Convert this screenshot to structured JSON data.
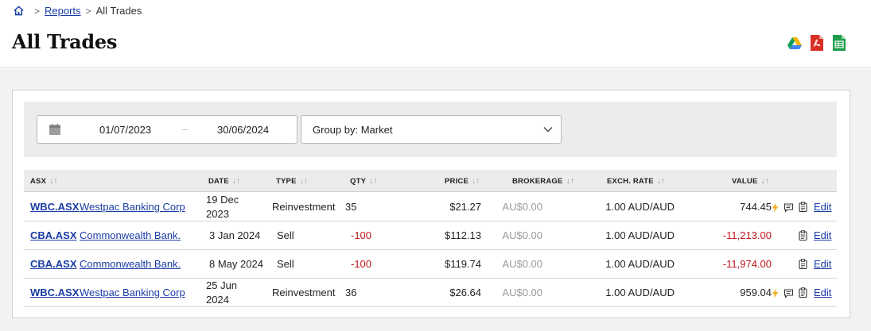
{
  "breadcrumb": {
    "home_icon": "home-icon",
    "reports_label": "Reports",
    "current_label": "All Trades"
  },
  "page": {
    "title": "All Trades"
  },
  "export": [
    {
      "name": "google-drive-icon"
    },
    {
      "name": "pdf-icon"
    },
    {
      "name": "spreadsheet-icon"
    }
  ],
  "filters": {
    "date_from": "01/07/2023",
    "date_separator": "–",
    "date_to": "30/06/2024",
    "group_by": "Group by: Market"
  },
  "table": {
    "columns": [
      "ASX",
      "DATE",
      "TYPE",
      "QTY",
      "PRICE",
      "BROKERAGE",
      "EXCH. RATE",
      "VALUE"
    ],
    "rows": [
      {
        "code": "WBC.ASX",
        "name": "Westpac Banking Corp",
        "date_l1": "19 Dec",
        "date_l2": "2023",
        "type": "Reinvestment",
        "qty": "35",
        "price": "$21.27",
        "brokerage": "AU$0.00",
        "rate": "1.00 AUD/AUD",
        "value": "744.45",
        "negative": false,
        "bolt": true,
        "comment": true,
        "edit": "Edit"
      },
      {
        "code": "CBA.ASX",
        "name": "Commonwealth Bank.",
        "date_l1": "3 Jan 2024",
        "date_l2": "",
        "type": "Sell",
        "qty": "-100",
        "price": "$112.13",
        "brokerage": "AU$0.00",
        "rate": "1.00 AUD/AUD",
        "value": "-11,213.00",
        "negative": true,
        "bolt": false,
        "comment": false,
        "edit": "Edit"
      },
      {
        "code": "CBA.ASX",
        "name": "Commonwealth Bank.",
        "date_l1": "8 May 2024",
        "date_l2": "",
        "type": "Sell",
        "qty": "-100",
        "price": "$119.74",
        "brokerage": "AU$0.00",
        "rate": "1.00 AUD/AUD",
        "value": "-11,974.00",
        "negative": true,
        "bolt": false,
        "comment": false,
        "edit": "Edit"
      },
      {
        "code": "WBC.ASX",
        "name": "Westpac Banking Corp",
        "date_l1": "25 Jun",
        "date_l2": "2024",
        "type": "Reinvestment",
        "qty": "36",
        "price": "$26.64",
        "brokerage": "AU$0.00",
        "rate": "1.00 AUD/AUD",
        "value": "959.04",
        "negative": false,
        "bolt": true,
        "comment": true,
        "edit": "Edit"
      }
    ]
  },
  "colors": {
    "link": "#1a3ca6",
    "negative": "#c0161b",
    "bolt": "#f2b01e",
    "pdf": "#d93025",
    "sheet": "#1e9e4a"
  }
}
